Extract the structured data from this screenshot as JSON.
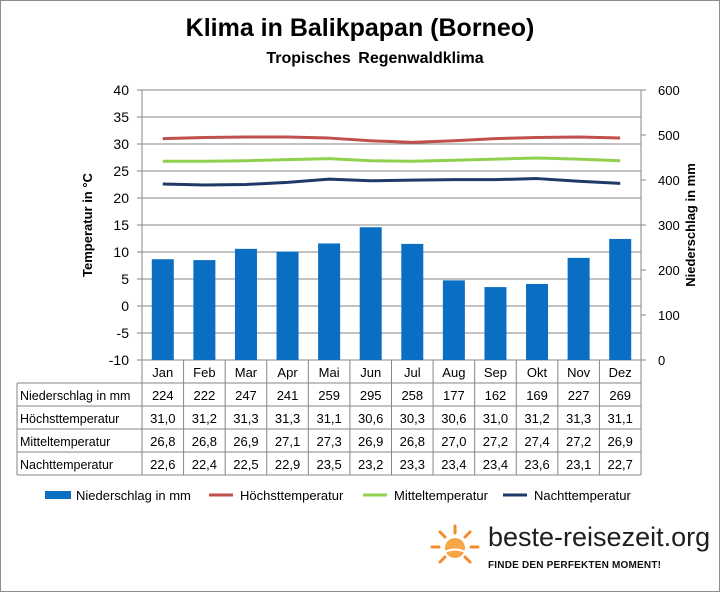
{
  "title": "Klima in Balikpapan (Borneo)",
  "subtitle": "Tropisches  Regenwaldklima",
  "logo": {
    "name": "beste-reisezeit.org",
    "tagline": "FINDE DEN PERFEKTEN MOMENT!",
    "icon": "sun-icon"
  },
  "chart_data": {
    "type": "bar",
    "categories": [
      "Jan",
      "Feb",
      "Mar",
      "Apr",
      "Mai",
      "Jun",
      "Jul",
      "Aug",
      "Sep",
      "Okt",
      "Nov",
      "Dez"
    ],
    "ylabel_left": "Temperatur in °C",
    "ylabel_right": "Niederschlag in mm",
    "ylim_left": [
      -10,
      40
    ],
    "ylim_right": [
      0,
      600
    ],
    "yticks_left": [
      "40",
      "35",
      "30",
      "25",
      "20",
      "15",
      "10",
      "5",
      "0",
      "-5",
      "-10"
    ],
    "yticks_right": [
      "600",
      "500",
      "400",
      "300",
      "200",
      "100",
      "0"
    ],
    "grid": true,
    "legend_position": "bottom",
    "series": [
      {
        "name": "Niederschlag in mm",
        "kind": "bar",
        "axis": "right",
        "color": "#0a6fc2",
        "values": [
          224,
          222,
          247,
          241,
          259,
          295,
          258,
          177,
          162,
          169,
          227,
          269
        ],
        "labels": [
          "224",
          "222",
          "247",
          "241",
          "259",
          "295",
          "258",
          "177",
          "162",
          "169",
          "227",
          "269"
        ]
      },
      {
        "name": "Höchsttemperatur",
        "kind": "line",
        "axis": "left",
        "color": "#c0504d",
        "values": [
          31.0,
          31.2,
          31.3,
          31.3,
          31.1,
          30.6,
          30.3,
          30.6,
          31.0,
          31.2,
          31.3,
          31.1
        ],
        "labels": [
          "31,0",
          "31,2",
          "31,3",
          "31,3",
          "31,1",
          "30,6",
          "30,3",
          "30,6",
          "31,0",
          "31,2",
          "31,3",
          "31,1"
        ]
      },
      {
        "name": "Mitteltemperatur",
        "kind": "line",
        "axis": "left",
        "color": "#8fd14f",
        "values": [
          26.8,
          26.8,
          26.9,
          27.1,
          27.3,
          26.9,
          26.8,
          27.0,
          27.2,
          27.4,
          27.2,
          26.9
        ],
        "labels": [
          "26,8",
          "26,8",
          "26,9",
          "27,1",
          "27,3",
          "26,9",
          "26,8",
          "27,0",
          "27,2",
          "27,4",
          "27,2",
          "26,9"
        ]
      },
      {
        "name": "Nachttemperatur",
        "kind": "line",
        "axis": "left",
        "color": "#1f3a68",
        "values": [
          22.6,
          22.4,
          22.5,
          22.9,
          23.5,
          23.2,
          23.3,
          23.4,
          23.4,
          23.6,
          23.1,
          22.7
        ],
        "labels": [
          "22,6",
          "22,4",
          "22,5",
          "22,9",
          "23,5",
          "23,2",
          "23,3",
          "23,4",
          "23,4",
          "23,6",
          "23,1",
          "22,7"
        ]
      }
    ]
  }
}
